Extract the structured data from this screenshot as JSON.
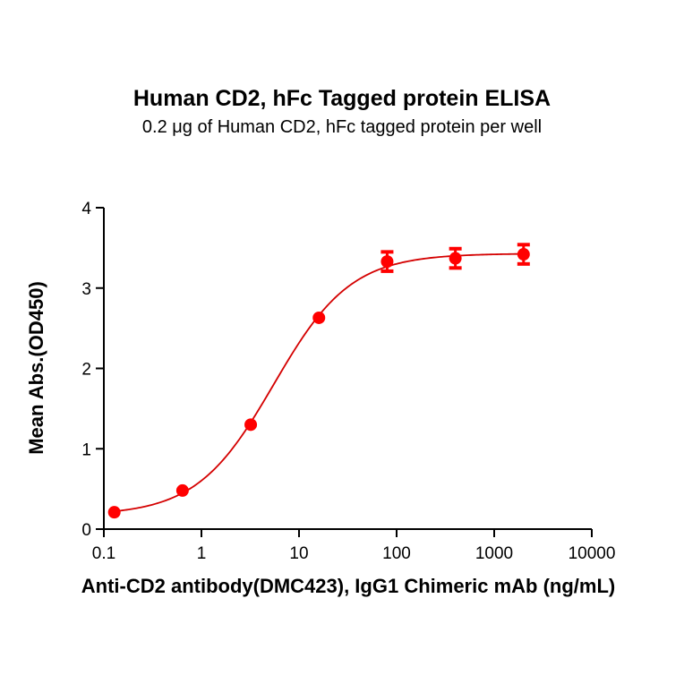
{
  "title": "Human CD2, hFc Tagged protein ELISA",
  "subtitle": "0.2 μg of Human CD2, hFc tagged protein per well",
  "colors": {
    "series": "#ff0000",
    "curve": "#d40000",
    "axis": "#000000"
  },
  "chart_data": {
    "type": "scatter",
    "title": "Human CD2, hFc Tagged protein ELISA",
    "subtitle": "0.2 μg of Human CD2, hFc tagged protein per well",
    "xlabel": "Anti-CD2 antibody(DMC423), IgG1 Chimeric mAb (ng/mL)",
    "ylabel": "Mean Abs.(OD450)",
    "xscale": "log",
    "xlim": [
      0.1,
      10000
    ],
    "ylim": [
      0,
      4
    ],
    "xticks": [
      "0.1",
      "1",
      "10",
      "100",
      "1000",
      "10000"
    ],
    "yticks": [
      "0",
      "1",
      "2",
      "3",
      "4"
    ],
    "grid": false,
    "legend": null,
    "series": [
      {
        "name": "Anti-CD2 antibody(DMC423)",
        "x": [
          0.128,
          0.64,
          3.2,
          16,
          80,
          400,
          2000
        ],
        "y": [
          0.21,
          0.48,
          1.3,
          2.63,
          3.33,
          3.37,
          3.42
        ],
        "error": [
          0.02,
          0.02,
          0.03,
          0.04,
          0.12,
          0.12,
          0.12
        ],
        "fit": {
          "model": "4PL",
          "bottom": 0.17,
          "top": 3.43,
          "ec50": 5.5,
          "hill": 1.1
        }
      }
    ]
  }
}
